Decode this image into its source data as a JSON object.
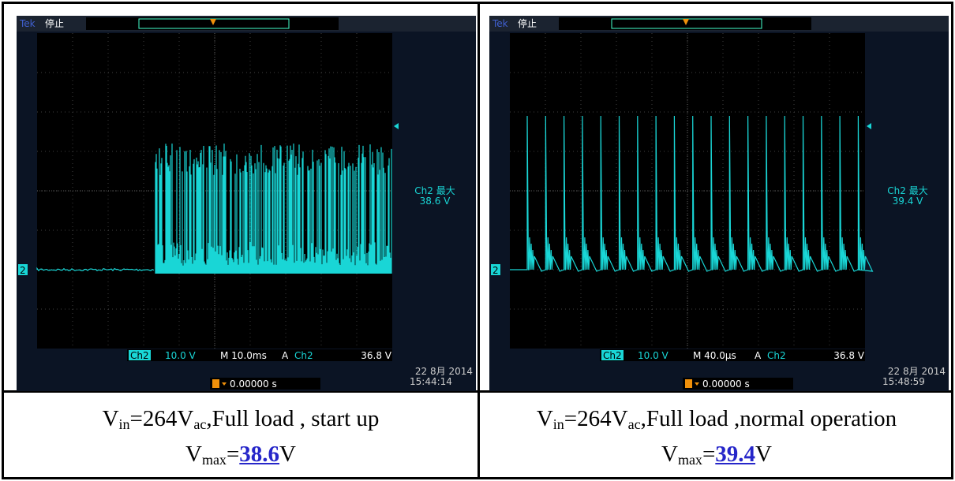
{
  "cells": [
    {
      "scope": {
        "brand": "Tek",
        "state": "停止",
        "ch_marker": "2",
        "measure_label": "Ch2 最大",
        "measure_value": "38.6 V",
        "channel": "Ch2",
        "volts_div": "10.0 V",
        "timebase": "M 10.0ms",
        "trigger_mode": "A",
        "trigger_source": "Ch2",
        "trigger_level": "36.8 V",
        "date": "22 8月 2014",
        "time": "15:44:14",
        "trigger_pos": "0.00000 s"
      },
      "caption": {
        "line1": [
          "V",
          "in",
          "=264V",
          "ac",
          ",Full load , start up"
        ],
        "line2": [
          "V",
          "max",
          "=",
          "38.6",
          "V"
        ]
      }
    },
    {
      "scope": {
        "brand": "Tek",
        "state": "停止",
        "ch_marker": "2",
        "measure_label": "Ch2 最大",
        "measure_value": "39.4 V",
        "channel": "Ch2",
        "volts_div": "10.0 V",
        "timebase": "M 40.0µs",
        "trigger_mode": "A",
        "trigger_source": "Ch2",
        "trigger_level": "36.8 V",
        "date": "22 8月 2014",
        "time": "15:48:59",
        "trigger_pos": "0.00000 s"
      },
      "caption": {
        "line1": [
          "V",
          "in",
          "=264V",
          "ac",
          ",Full load ,normal operation"
        ],
        "line2": [
          "V",
          "max",
          "=",
          "39.4",
          "V"
        ]
      }
    }
  ]
}
